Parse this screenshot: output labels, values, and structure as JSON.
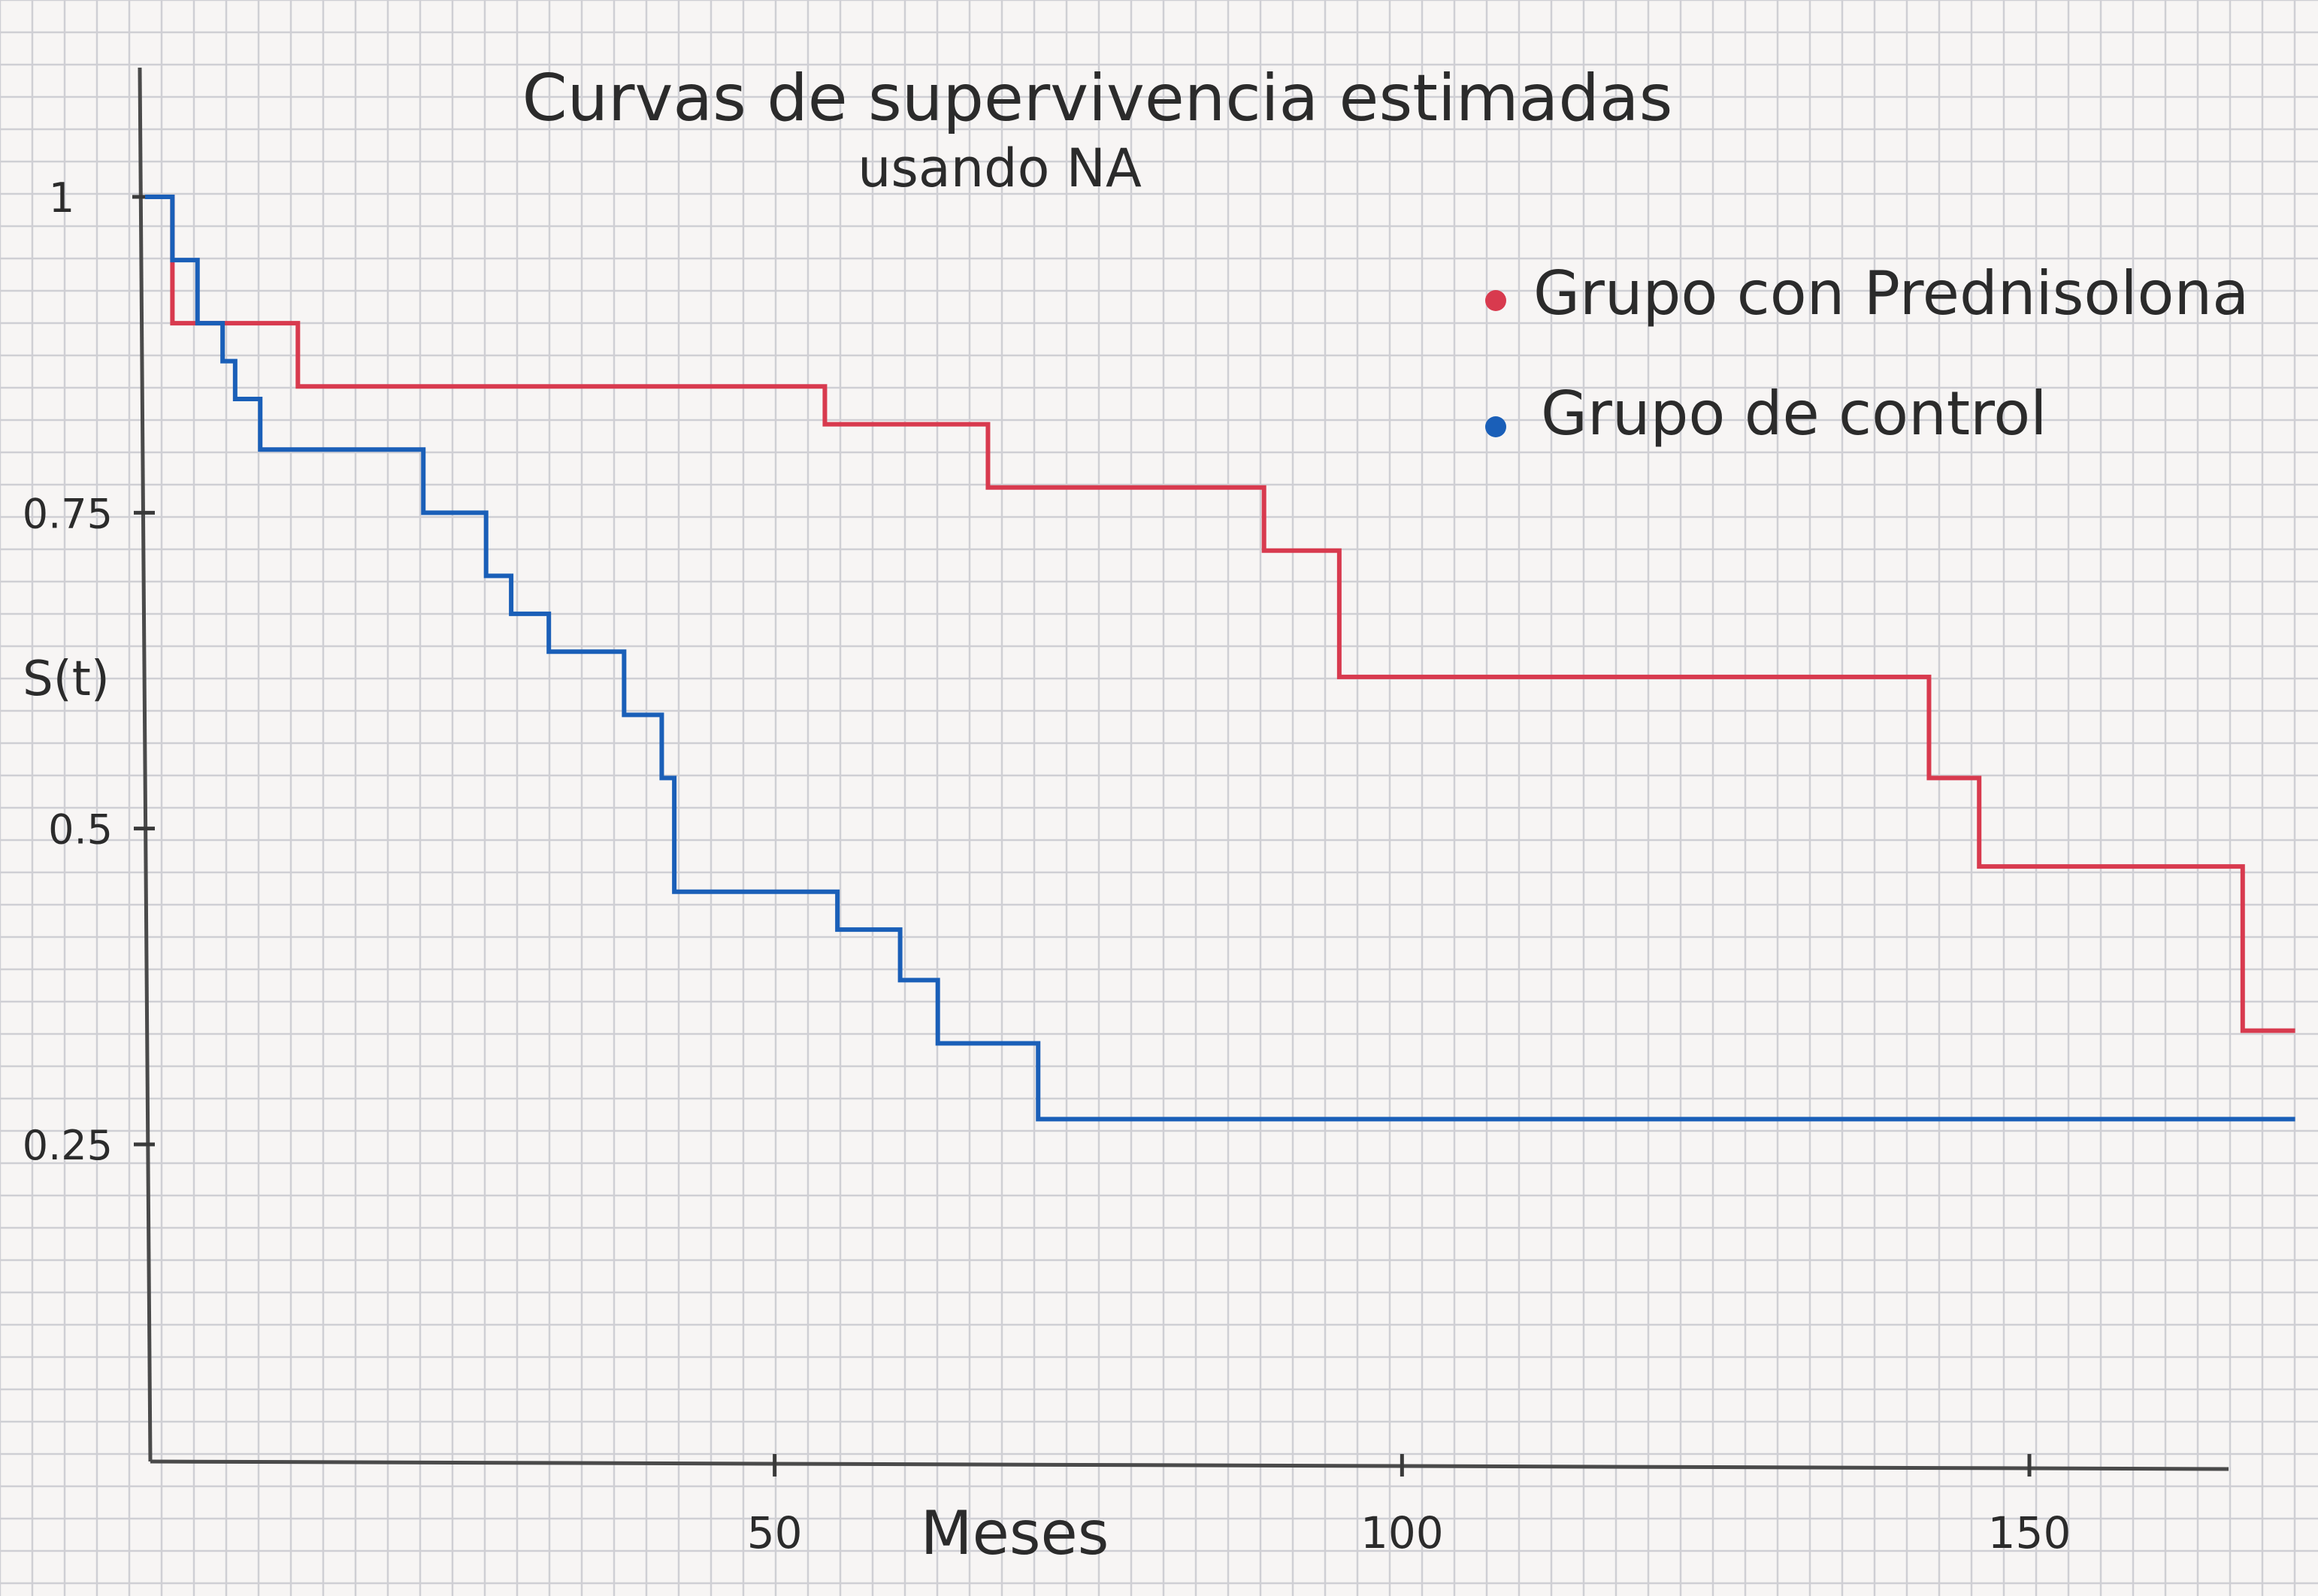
{
  "chart_data": {
    "type": "line",
    "step": true,
    "title": "Curvas de supervivencia estimadas",
    "subtitle": "usando NA",
    "xlabel": "Meses",
    "ylabel": "S(t)",
    "xlim": [
      0,
      168
    ],
    "ylim": [
      0,
      1.02
    ],
    "x_ticks": [
      {
        "value": 50,
        "label": "50"
      },
      {
        "value": 100,
        "label": "100"
      },
      {
        "value": 150,
        "label": "150"
      }
    ],
    "y_ticks": [
      {
        "value": 1,
        "label": "1"
      },
      {
        "value": 0.75,
        "label": "0.75"
      },
      {
        "value": 0.5,
        "label": "0.5"
      },
      {
        "value": 0.25,
        "label": "0.25"
      }
    ],
    "grid": true,
    "legend_position": "top-right",
    "series": [
      {
        "name": "Grupo con Prednisolona",
        "color": "#d83a4e",
        "x": [
          0,
          2,
          12,
          54,
          67,
          89,
          95,
          142,
          146,
          167,
          171
        ],
        "y": [
          1.0,
          0.9,
          0.85,
          0.82,
          0.77,
          0.72,
          0.62,
          0.54,
          0.47,
          0.34,
          0.34
        ]
      },
      {
        "name": "Grupo de control",
        "color": "#1a5fb8",
        "x": [
          0,
          2,
          4,
          6,
          7,
          9,
          22,
          27,
          29,
          32,
          38,
          41,
          42,
          55,
          60,
          63,
          71,
          171
        ],
        "y": [
          1.0,
          0.95,
          0.9,
          0.87,
          0.84,
          0.8,
          0.75,
          0.7,
          0.67,
          0.64,
          0.59,
          0.54,
          0.45,
          0.42,
          0.38,
          0.33,
          0.27,
          0.27
        ]
      }
    ]
  }
}
